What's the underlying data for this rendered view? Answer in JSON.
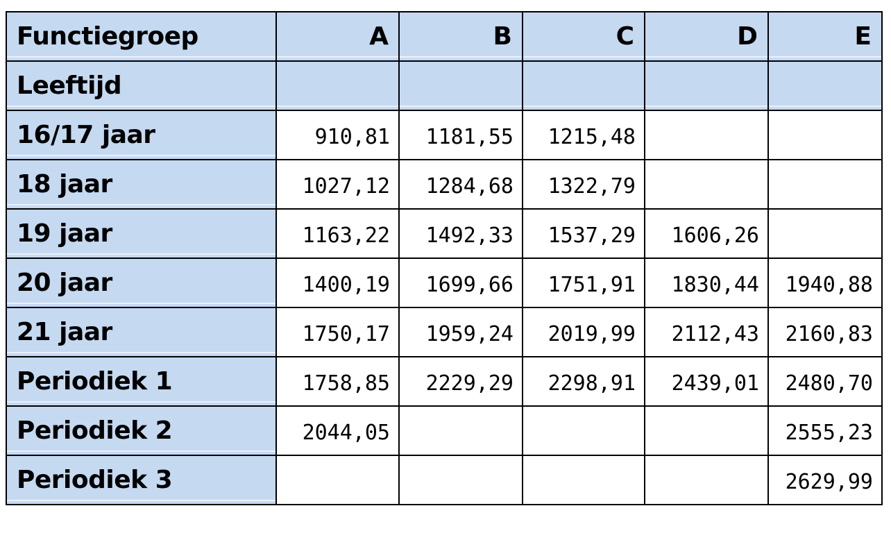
{
  "table": {
    "header": {
      "label": "Functiegroep",
      "columns": [
        "A",
        "B",
        "C",
        "D",
        "E"
      ]
    },
    "subheader": {
      "label": "Leeftijd"
    },
    "rows": [
      {
        "label": "16/17 jaar",
        "values": [
          "910,81",
          "1181,55",
          "1215,48",
          "",
          ""
        ]
      },
      {
        "label": "18 jaar",
        "values": [
          "1027,12",
          "1284,68",
          "1322,79",
          "",
          ""
        ]
      },
      {
        "label": "19 jaar",
        "values": [
          "1163,22",
          "1492,33",
          "1537,29",
          "1606,26",
          ""
        ]
      },
      {
        "label": "20 jaar",
        "values": [
          "1400,19",
          "1699,66",
          "1751,91",
          "1830,44",
          "1940,88"
        ]
      },
      {
        "label": "21 jaar",
        "values": [
          "1750,17",
          "1959,24",
          "2019,99",
          "2112,43",
          "2160,83"
        ]
      },
      {
        "label": "Periodiek 1",
        "values": [
          "1758,85",
          "2229,29",
          "2298,91",
          "2439,01",
          "2480,70"
        ]
      },
      {
        "label": "Periodiek 2",
        "values": [
          "2044,05",
          "",
          "",
          "",
          "2555,23"
        ]
      },
      {
        "label": "Periodiek 3",
        "values": [
          "",
          "",
          "",
          "",
          "2629,99"
        ]
      }
    ]
  },
  "colors": {
    "header_fill": "#c5d9f1",
    "border": "#000000"
  }
}
